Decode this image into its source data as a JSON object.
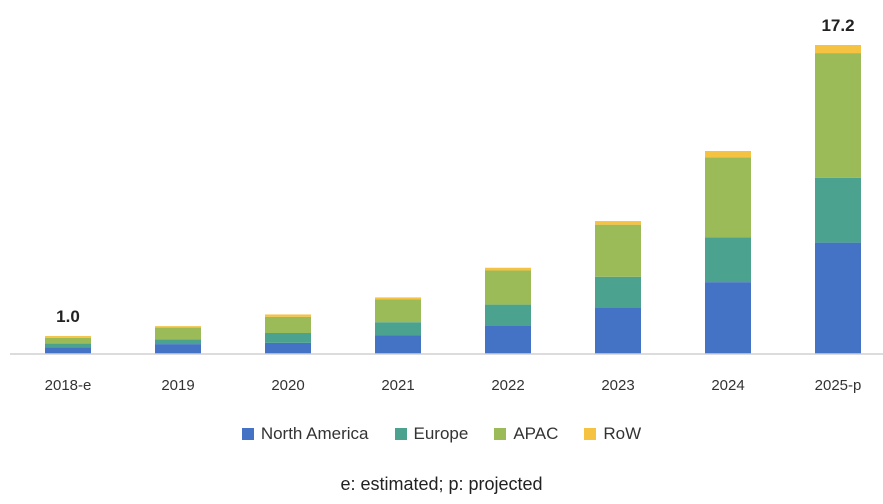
{
  "chart_data": {
    "type": "bar",
    "stacked": true,
    "categories": [
      "2018-e",
      "2019",
      "2020",
      "2021",
      "2022",
      "2023",
      "2024",
      "2025-p"
    ],
    "series": [
      {
        "name": "North America",
        "color": "#4472c4",
        "values": [
          0.38,
          0.55,
          0.62,
          1.05,
          1.6,
          2.6,
          4.0,
          6.2
        ]
      },
      {
        "name": "Europe",
        "color": "#4ba38f",
        "values": [
          0.2,
          0.27,
          0.55,
          0.72,
          1.15,
          1.7,
          2.5,
          3.6
        ]
      },
      {
        "name": "APAC",
        "color": "#9bbb59",
        "values": [
          0.32,
          0.65,
          0.9,
          1.28,
          1.9,
          2.9,
          4.45,
          6.95
        ]
      },
      {
        "name": "RoW",
        "color": "#f5c242",
        "values": [
          0.1,
          0.08,
          0.13,
          0.1,
          0.15,
          0.2,
          0.35,
          0.45
        ]
      }
    ],
    "data_labels": [
      {
        "category": "2018-e",
        "text": "1.0"
      },
      {
        "category": "2025-p",
        "text": "17.2"
      }
    ],
    "ylim": [
      0,
      17.2
    ],
    "grid": false,
    "legend_position": "bottom",
    "title": "",
    "xlabel": "",
    "ylabel": ""
  },
  "footnote": "e: estimated; p: projected"
}
